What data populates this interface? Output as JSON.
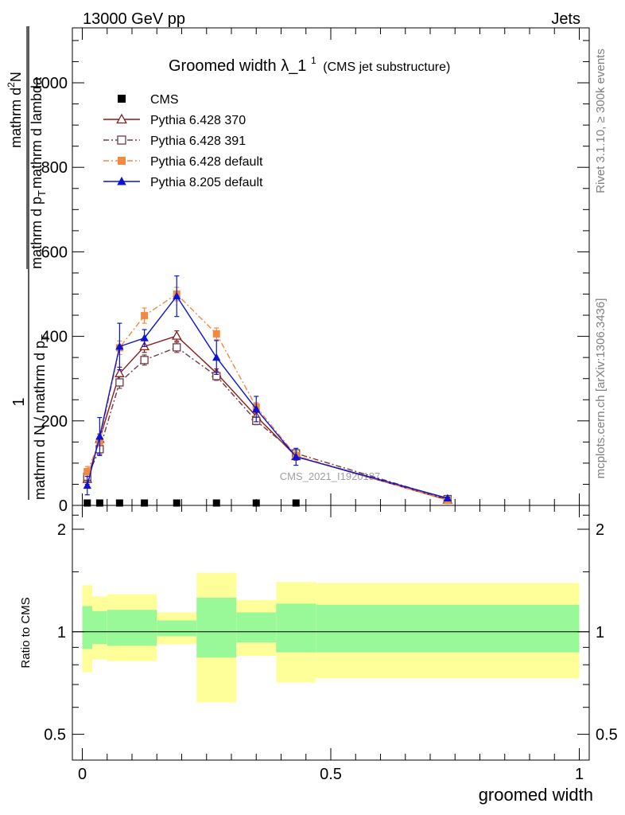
{
  "header": {
    "energy_label": "13000 GeV pp",
    "process_label": "Jets"
  },
  "side_labels": {
    "rivet": "Rivet 3.1.10, ≥ 300k events",
    "mcplots": "mcplots.cern.ch [arXiv:1306.3436]"
  },
  "watermark": "CMS_2021_I1920187",
  "chart_data": [
    {
      "type": "line",
      "title": "Groomed width",
      "title_symbol": "λ_1",
      "title_superscript": "1",
      "subtitle": "(CMS jet substructure)",
      "ylabel": {
        "fraction_numerator": "1",
        "fraction_denominator": "mathrm d N / mathrm d p",
        "fraction_denominator_sub": "T",
        "numerator": "mathrm d",
        "numerator_superscript": "2",
        "numerator_end": "N",
        "denominator_start": "mathrm d p",
        "denominator_sub": "T",
        "denominator_end": "mathrm d lambda"
      },
      "xlim": [
        -0.02,
        1.02
      ],
      "ylim": [
        0,
        1130
      ],
      "y_ticks": [
        0,
        200,
        400,
        600,
        800,
        1000
      ],
      "y_tick_labels": [
        "0",
        "200",
        "400",
        "600",
        "800",
        "1000"
      ],
      "legend_position": "top-left",
      "series": [
        {
          "name": "CMS",
          "color": "#000000",
          "marker": "square-filled",
          "points": [
            {
              "x": 0.01,
              "y": 0.5
            },
            {
              "x": 0.035,
              "y": 0.5
            },
            {
              "x": 0.075,
              "y": 1.0
            },
            {
              "x": 0.125,
              "y": 1.5
            },
            {
              "x": 0.19,
              "y": 1.0
            },
            {
              "x": 0.27,
              "y": 0.5
            },
            {
              "x": 0.35,
              "y": 0.3
            },
            {
              "x": 0.43,
              "y": 0.2
            }
          ]
        },
        {
          "name": "Pythia 6.428 370",
          "color": "#8b1a1a",
          "marker": "triangle-open",
          "dash": "solid",
          "points": [
            {
              "x": 0.01,
              "y": 62,
              "err": 12
            },
            {
              "x": 0.035,
              "y": 157,
              "err": 12
            },
            {
              "x": 0.075,
              "y": 312,
              "err": 15
            },
            {
              "x": 0.125,
              "y": 376,
              "err": 14
            },
            {
              "x": 0.19,
              "y": 401,
              "err": 12
            },
            {
              "x": 0.27,
              "y": 313,
              "err": 10
            },
            {
              "x": 0.35,
              "y": 211,
              "err": 9
            },
            {
              "x": 0.43,
              "y": 116,
              "err": 9
            },
            {
              "x": 0.735,
              "y": 13,
              "err": 2
            }
          ]
        },
        {
          "name": "Pythia 6.428 391",
          "color": "#6e3a45",
          "marker": "square-open",
          "dash": "dashdot",
          "points": [
            {
              "x": 0.01,
              "y": 68,
              "err": 12
            },
            {
              "x": 0.035,
              "y": 133,
              "err": 12
            },
            {
              "x": 0.075,
              "y": 291,
              "err": 14
            },
            {
              "x": 0.125,
              "y": 344,
              "err": 12
            },
            {
              "x": 0.19,
              "y": 374,
              "err": 12
            },
            {
              "x": 0.27,
              "y": 306,
              "err": 10
            },
            {
              "x": 0.35,
              "y": 200,
              "err": 9
            },
            {
              "x": 0.43,
              "y": 123,
              "err": 9
            },
            {
              "x": 0.735,
              "y": 15,
              "err": 2
            }
          ]
        },
        {
          "name": "Pythia 6.428 default",
          "color": "#f5883c",
          "marker": "square-filled",
          "dash": "dashdot",
          "points": [
            {
              "x": 0.01,
              "y": 80,
              "err": 12
            },
            {
              "x": 0.035,
              "y": 152,
              "err": 12
            },
            {
              "x": 0.075,
              "y": 373,
              "err": 16
            },
            {
              "x": 0.125,
              "y": 449,
              "err": 18
            },
            {
              "x": 0.19,
              "y": 500,
              "err": 16
            },
            {
              "x": 0.27,
              "y": 406,
              "err": 14
            },
            {
              "x": 0.35,
              "y": 233,
              "err": 10
            },
            {
              "x": 0.43,
              "y": 118,
              "err": 9
            },
            {
              "x": 0.735,
              "y": 12,
              "err": 2
            }
          ]
        },
        {
          "name": "Pythia 8.205 default",
          "color": "#0a14d2",
          "marker": "triangle-filled",
          "dash": "solid",
          "points": [
            {
              "x": 0.01,
              "y": 47,
              "err": 22
            },
            {
              "x": 0.035,
              "y": 163,
              "err": 45
            },
            {
              "x": 0.075,
              "y": 376,
              "err": 55
            },
            {
              "x": 0.125,
              "y": 396,
              "err": 20
            },
            {
              "x": 0.19,
              "y": 495,
              "err": 48
            },
            {
              "x": 0.27,
              "y": 350,
              "err": 40
            },
            {
              "x": 0.35,
              "y": 228,
              "err": 30
            },
            {
              "x": 0.43,
              "y": 115,
              "err": 20
            },
            {
              "x": 0.735,
              "y": 17,
              "err": 3
            }
          ]
        }
      ]
    },
    {
      "type": "area",
      "ylabel": "Ratio to CMS",
      "xlabel": "groomed width",
      "xlim": [
        -0.02,
        1.02
      ],
      "ylim": [
        0.42,
        2.35
      ],
      "y_scale": "log",
      "y_ticks": [
        0.5,
        1,
        2
      ],
      "y_tick_labels": [
        "0.5",
        "1",
        "2"
      ],
      "x_ticks": [
        0,
        0.5,
        1
      ],
      "x_tick_labels": [
        "0",
        "0.5",
        "1"
      ],
      "reference_line": 1,
      "inner_band_color": "#99f999",
      "outer_band_color": "#ffff99",
      "bands": [
        {
          "x0": 0.0,
          "x1": 0.02,
          "inner_lo": 0.89,
          "inner_hi": 1.19,
          "outer_lo": 0.76,
          "outer_hi": 1.37
        },
        {
          "x0": 0.02,
          "x1": 0.05,
          "inner_lo": 0.92,
          "inner_hi": 1.15,
          "outer_lo": 0.83,
          "outer_hi": 1.27
        },
        {
          "x0": 0.05,
          "x1": 0.1,
          "inner_lo": 0.91,
          "inner_hi": 1.16,
          "outer_lo": 0.82,
          "outer_hi": 1.29
        },
        {
          "x0": 0.1,
          "x1": 0.15,
          "inner_lo": 0.91,
          "inner_hi": 1.16,
          "outer_lo": 0.82,
          "outer_hi": 1.29
        },
        {
          "x0": 0.15,
          "x1": 0.23,
          "inner_lo": 0.97,
          "inner_hi": 1.08,
          "outer_lo": 0.92,
          "outer_hi": 1.14
        },
        {
          "x0": 0.23,
          "x1": 0.31,
          "inner_lo": 0.84,
          "inner_hi": 1.26,
          "outer_lo": 0.62,
          "outer_hi": 1.49
        },
        {
          "x0": 0.31,
          "x1": 0.39,
          "inner_lo": 0.93,
          "inner_hi": 1.14,
          "outer_lo": 0.85,
          "outer_hi": 1.24
        },
        {
          "x0": 0.39,
          "x1": 0.47,
          "inner_lo": 0.87,
          "inner_hi": 1.21,
          "outer_lo": 0.71,
          "outer_hi": 1.4
        },
        {
          "x0": 0.47,
          "x1": 1.0,
          "inner_lo": 0.87,
          "inner_hi": 1.2,
          "outer_lo": 0.73,
          "outer_hi": 1.39
        }
      ]
    }
  ]
}
